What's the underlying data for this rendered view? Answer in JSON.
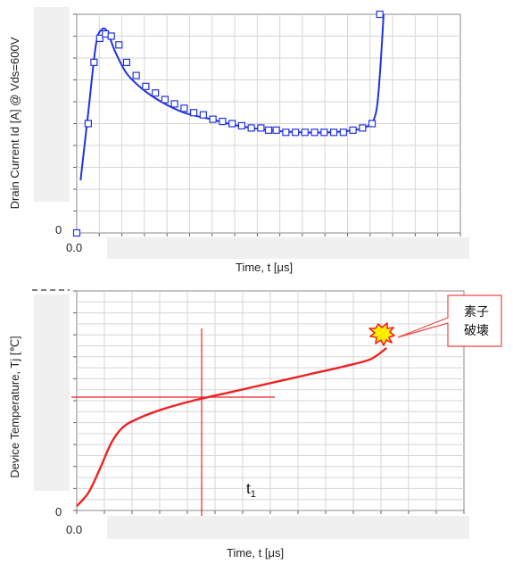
{
  "chart_data": [
    {
      "type": "line",
      "ylabel": "Drain Current Id [A] @ Vds=600V",
      "xlabel": "Time, t [μs]",
      "x_tick_label": "0.0",
      "y_tick_label": "0",
      "grid": true,
      "series": [
        {
          "style": "line",
          "color": "#2233dd",
          "x": [
            0.01,
            0.03,
            0.05,
            0.065,
            0.08,
            0.1,
            0.13,
            0.17,
            0.22,
            0.28,
            0.35,
            0.42,
            0.5,
            0.58,
            0.66,
            0.72,
            0.76,
            0.78,
            0.79,
            0.8
          ],
          "y": [
            0.24,
            0.55,
            0.86,
            0.93,
            0.92,
            0.83,
            0.73,
            0.66,
            0.6,
            0.55,
            0.52,
            0.49,
            0.47,
            0.46,
            0.46,
            0.47,
            0.49,
            0.55,
            0.72,
            1.0
          ]
        },
        {
          "style": "markers",
          "marker": "square",
          "color": "#2233dd",
          "x": [
            0.0,
            0.03,
            0.045,
            0.06,
            0.075,
            0.09,
            0.11,
            0.13,
            0.155,
            0.18,
            0.205,
            0.23,
            0.255,
            0.28,
            0.305,
            0.33,
            0.355,
            0.38,
            0.405,
            0.43,
            0.455,
            0.48,
            0.5,
            0.52,
            0.545,
            0.57,
            0.595,
            0.62,
            0.645,
            0.67,
            0.695,
            0.72,
            0.745,
            0.77,
            0.79
          ],
          "y": [
            0.0,
            0.5,
            0.78,
            0.89,
            0.91,
            0.9,
            0.86,
            0.78,
            0.72,
            0.67,
            0.64,
            0.61,
            0.59,
            0.57,
            0.55,
            0.54,
            0.52,
            0.51,
            0.5,
            0.49,
            0.48,
            0.48,
            0.47,
            0.47,
            0.46,
            0.46,
            0.46,
            0.46,
            0.46,
            0.46,
            0.46,
            0.47,
            0.48,
            0.5,
            1.0
          ]
        }
      ]
    },
    {
      "type": "line",
      "ylabel": "Device Temperature, Tj [℃]",
      "xlabel": "Time, t [μs]",
      "x_tick_label": "0.0",
      "y_tick_label": "0",
      "grid": true,
      "annotation_t1": {
        "label": "t",
        "subscript": "1"
      },
      "callout": [
        "素子",
        "破壊"
      ],
      "series": [
        {
          "style": "line",
          "color": "#ee2222",
          "x": [
            0.0,
            0.03,
            0.06,
            0.09,
            0.12,
            0.16,
            0.22,
            0.3,
            0.4,
            0.5,
            0.6,
            0.7,
            0.76,
            0.8
          ],
          "y": [
            0.02,
            0.08,
            0.19,
            0.31,
            0.38,
            0.42,
            0.46,
            0.5,
            0.54,
            0.58,
            0.62,
            0.66,
            0.69,
            0.74
          ]
        }
      ]
    }
  ]
}
